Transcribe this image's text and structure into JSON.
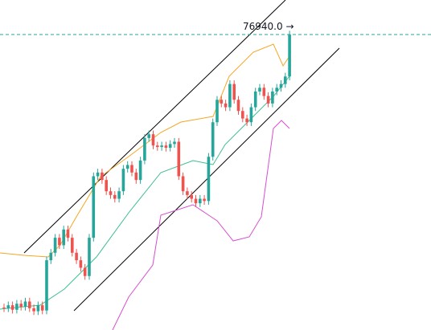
{
  "chart_data": {
    "type": "candlestick",
    "ylim": [
      73000,
      77400
    ],
    "up_color": "#26a69a",
    "down_color": "#ef5350",
    "price_line": {
      "value": 76940,
      "label": "76940.0 →",
      "color": "#26a69a"
    },
    "open": [
      73300,
      73290,
      73330,
      73270,
      73350,
      73310,
      73380,
      73290,
      73250,
      73330,
      73260,
      73930,
      74030,
      74230,
      74130,
      74340,
      74230,
      74030,
      73930,
      73830,
      73720,
      74230,
      75050,
      75100,
      75000,
      74850,
      74800,
      74750,
      74850,
      75150,
      75200,
      75100,
      75000,
      75260,
      75560,
      75610,
      75460,
      75440,
      75460,
      75430,
      75480,
      75510,
      75050,
      74850,
      74800,
      74750,
      74690,
      74750,
      74720,
      75310,
      75770,
      76070,
      76020,
      75970,
      76280,
      76070,
      75920,
      75820,
      75770,
      75970,
      76180,
      76230,
      76120,
      76020,
      76180,
      76230,
      76280,
      76380
    ],
    "high": [
      73350,
      73380,
      73380,
      73400,
      73400,
      73430,
      73430,
      73340,
      73380,
      73380,
      73980,
      74080,
      74280,
      74280,
      74390,
      74390,
      74280,
      74080,
      73980,
      73880,
      74280,
      75100,
      75150,
      75150,
      75050,
      74900,
      74850,
      74900,
      75200,
      75250,
      75250,
      75150,
      75310,
      75610,
      75660,
      75660,
      75510,
      75510,
      75510,
      75530,
      75560,
      75560,
      75100,
      74900,
      74850,
      74800,
      74800,
      74800,
      75360,
      75820,
      76120,
      76120,
      76070,
      76330,
      76330,
      76120,
      75970,
      75870,
      76020,
      76230,
      76280,
      76280,
      76170,
      76230,
      76280,
      76330,
      76430,
      76990
    ],
    "low": [
      73240,
      73240,
      73220,
      73220,
      73260,
      73260,
      73240,
      73200,
      73200,
      73210,
      73210,
      73880,
      73980,
      74080,
      74080,
      74180,
      73980,
      73880,
      73780,
      73670,
      73670,
      74180,
      75000,
      74950,
      74800,
      74750,
      74700,
      74700,
      74800,
      75100,
      75050,
      74950,
      74950,
      75210,
      75510,
      75410,
      75390,
      75390,
      75380,
      75380,
      75430,
      75000,
      74800,
      74750,
      74700,
      74640,
      74640,
      74670,
      74670,
      75260,
      75720,
      75970,
      75920,
      75920,
      76020,
      75870,
      75770,
      75720,
      75720,
      75920,
      76130,
      76070,
      75970,
      75970,
      76130,
      76180,
      76230,
      76330
    ],
    "close": [
      73290,
      73330,
      73270,
      73350,
      73310,
      73380,
      73290,
      73250,
      73330,
      73260,
      73930,
      74030,
      74230,
      74130,
      74340,
      74230,
      74030,
      73930,
      73830,
      73720,
      74230,
      75050,
      75100,
      75000,
      74850,
      74800,
      74750,
      74850,
      75150,
      75200,
      75100,
      75000,
      75260,
      75560,
      75610,
      75460,
      75440,
      75460,
      75430,
      75480,
      75510,
      75050,
      74850,
      74800,
      74750,
      74690,
      74750,
      74720,
      75310,
      75770,
      76070,
      76020,
      75970,
      76280,
      76070,
      75920,
      75820,
      75770,
      75970,
      76180,
      76230,
      76120,
      76020,
      76180,
      76230,
      76280,
      76380,
      76940
    ]
  }
}
